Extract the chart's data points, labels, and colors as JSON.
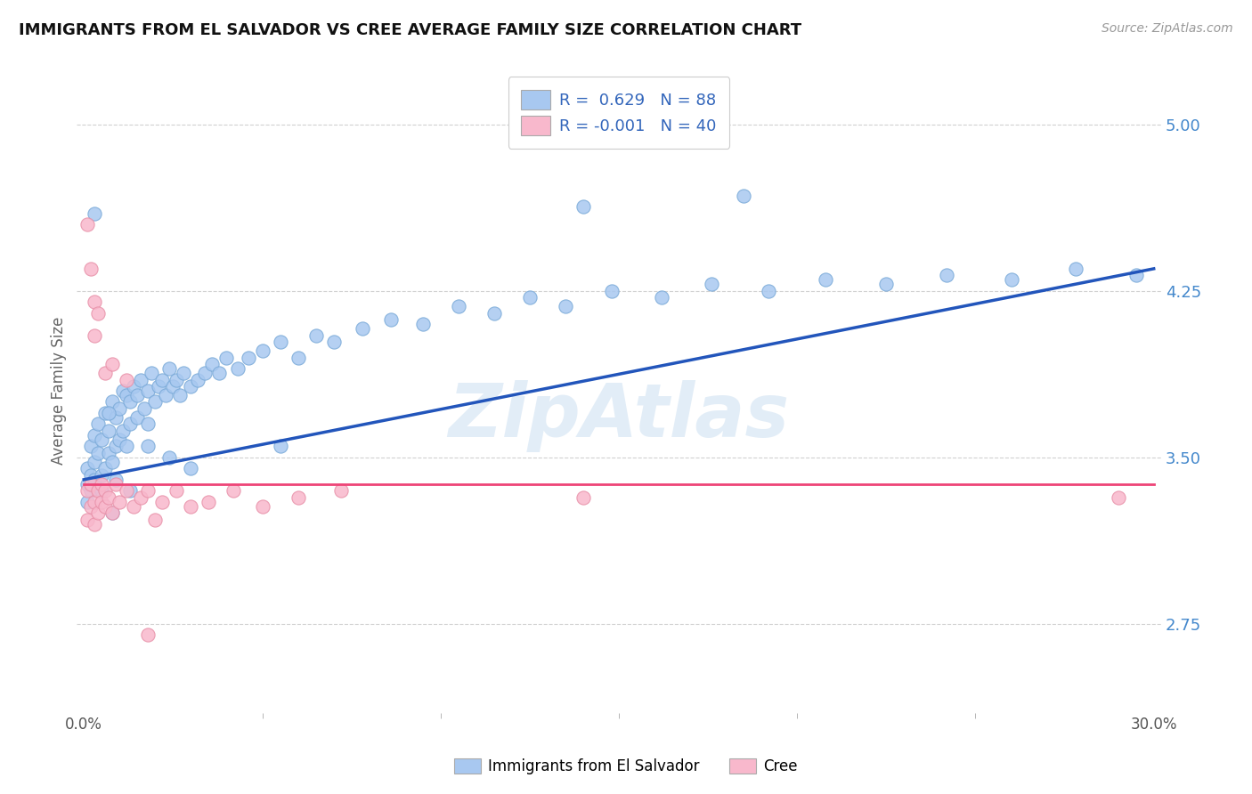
{
  "title": "IMMIGRANTS FROM EL SALVADOR VS CREE AVERAGE FAMILY SIZE CORRELATION CHART",
  "source": "Source: ZipAtlas.com",
  "ylabel": "Average Family Size",
  "xlim": [
    -0.002,
    0.302
  ],
  "ylim": [
    2.35,
    5.25
  ],
  "yticks": [
    2.75,
    3.5,
    4.25,
    5.0
  ],
  "ytick_labels": [
    "2.75",
    "3.50",
    "4.25",
    "5.00"
  ],
  "xticks": [
    0.0,
    0.3
  ],
  "xtick_labels": [
    "0.0%",
    "30.0%"
  ],
  "legend_line1": "R =  0.629   N = 88",
  "legend_line2": "R = -0.001   N = 40",
  "blue_color": "#A8C8F0",
  "blue_edge": "#7AAAD8",
  "pink_color": "#F8B8CC",
  "pink_edge": "#E890A8",
  "trend_blue": "#2255BB",
  "trend_pink": "#EE4477",
  "watermark": "ZipAtlas",
  "legend_label1": "Immigrants from El Salvador",
  "legend_label2": "Cree",
  "blue_trend_x0": 0.0,
  "blue_trend_y0": 3.4,
  "blue_trend_x1": 0.3,
  "blue_trend_y1": 4.35,
  "pink_trend_x0": 0.0,
  "pink_trend_y0": 3.38,
  "pink_trend_x1": 0.3,
  "pink_trend_y1": 3.38,
  "blue_x": [
    0.001,
    0.001,
    0.001,
    0.002,
    0.002,
    0.002,
    0.003,
    0.003,
    0.003,
    0.004,
    0.004,
    0.005,
    0.005,
    0.005,
    0.006,
    0.006,
    0.007,
    0.007,
    0.008,
    0.008,
    0.009,
    0.009,
    0.01,
    0.01,
    0.011,
    0.011,
    0.012,
    0.012,
    0.013,
    0.013,
    0.014,
    0.015,
    0.015,
    0.016,
    0.017,
    0.018,
    0.018,
    0.019,
    0.02,
    0.021,
    0.022,
    0.023,
    0.024,
    0.025,
    0.026,
    0.027,
    0.028,
    0.03,
    0.032,
    0.034,
    0.036,
    0.038,
    0.04,
    0.043,
    0.046,
    0.05,
    0.055,
    0.06,
    0.065,
    0.07,
    0.078,
    0.086,
    0.095,
    0.105,
    0.115,
    0.125,
    0.135,
    0.148,
    0.162,
    0.176,
    0.192,
    0.208,
    0.225,
    0.242,
    0.26,
    0.278,
    0.295,
    0.003,
    0.14,
    0.185,
    0.024,
    0.008,
    0.013,
    0.007,
    0.055,
    0.03,
    0.018,
    0.009
  ],
  "blue_y": [
    3.38,
    3.45,
    3.3,
    3.42,
    3.55,
    3.35,
    3.48,
    3.6,
    3.4,
    3.52,
    3.65,
    3.58,
    3.42,
    3.35,
    3.7,
    3.45,
    3.62,
    3.52,
    3.75,
    3.48,
    3.68,
    3.55,
    3.72,
    3.58,
    3.8,
    3.62,
    3.78,
    3.55,
    3.75,
    3.65,
    3.82,
    3.78,
    3.68,
    3.85,
    3.72,
    3.8,
    3.65,
    3.88,
    3.75,
    3.82,
    3.85,
    3.78,
    3.9,
    3.82,
    3.85,
    3.78,
    3.88,
    3.82,
    3.85,
    3.88,
    3.92,
    3.88,
    3.95,
    3.9,
    3.95,
    3.98,
    4.02,
    3.95,
    4.05,
    4.02,
    4.08,
    4.12,
    4.1,
    4.18,
    4.15,
    4.22,
    4.18,
    4.25,
    4.22,
    4.28,
    4.25,
    4.3,
    4.28,
    4.32,
    4.3,
    4.35,
    4.32,
    4.6,
    4.63,
    4.68,
    3.5,
    3.25,
    3.35,
    3.7,
    3.55,
    3.45,
    3.55,
    3.4
  ],
  "pink_x": [
    0.001,
    0.001,
    0.002,
    0.002,
    0.003,
    0.003,
    0.004,
    0.004,
    0.005,
    0.005,
    0.006,
    0.006,
    0.007,
    0.008,
    0.009,
    0.01,
    0.012,
    0.014,
    0.016,
    0.018,
    0.022,
    0.026,
    0.03,
    0.035,
    0.042,
    0.05,
    0.06,
    0.072,
    0.14,
    0.29,
    0.001,
    0.002,
    0.003,
    0.003,
    0.004,
    0.006,
    0.008,
    0.012,
    0.02,
    0.018
  ],
  "pink_y": [
    3.35,
    3.22,
    3.28,
    3.38,
    3.3,
    3.2,
    3.35,
    3.25,
    3.38,
    3.3,
    3.35,
    3.28,
    3.32,
    3.25,
    3.38,
    3.3,
    3.35,
    3.28,
    3.32,
    3.35,
    3.3,
    3.35,
    3.28,
    3.3,
    3.35,
    3.28,
    3.32,
    3.35,
    3.32,
    3.32,
    4.55,
    4.35,
    4.2,
    4.05,
    4.15,
    3.88,
    3.92,
    3.85,
    3.22,
    2.7
  ]
}
